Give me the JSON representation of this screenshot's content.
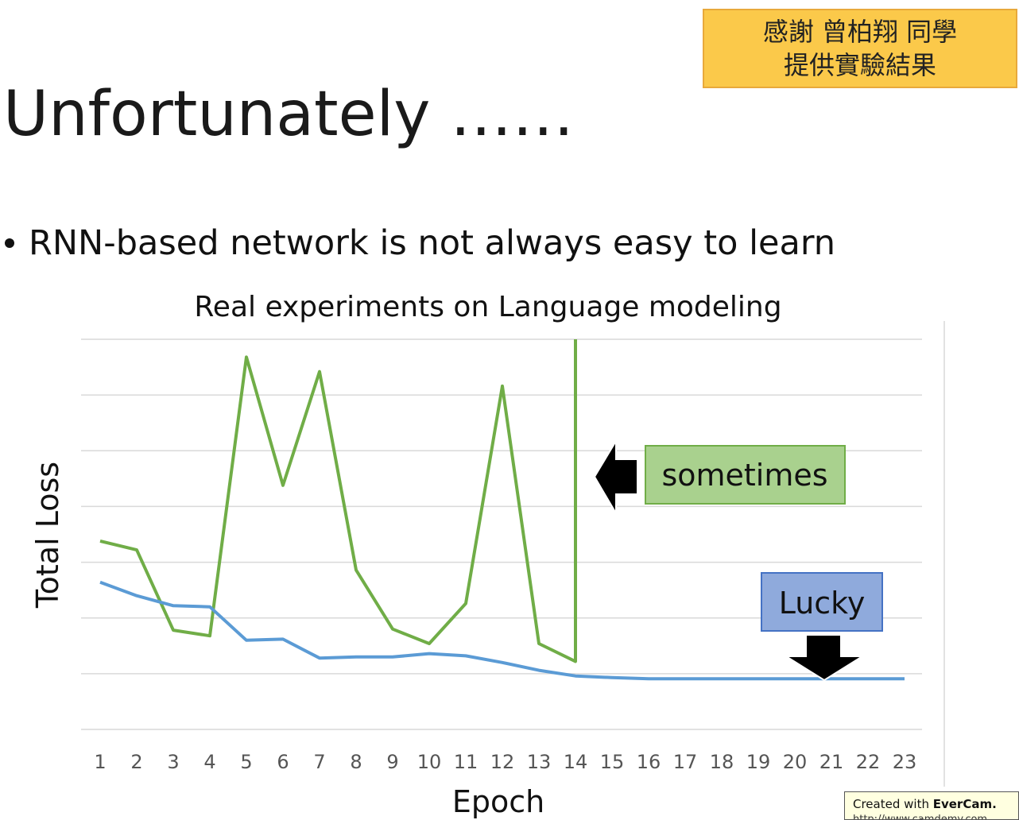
{
  "thanks_note": {
    "line1": "感謝 曾柏翔 同學",
    "line2": "提供實驗結果"
  },
  "slide": {
    "title": "Unfortunately ……",
    "bullet": "RNN-based network is not always easy to learn"
  },
  "chart_data": {
    "type": "line",
    "title": "Real experiments on Language modeling",
    "xlabel": "Epoch",
    "ylabel": "Total Loss",
    "categories": [
      "1",
      "2",
      "3",
      "4",
      "5",
      "6",
      "7",
      "8",
      "9",
      "10",
      "11",
      "12",
      "13",
      "14",
      "15",
      "16",
      "17",
      "18",
      "19",
      "20",
      "21",
      "22",
      "23"
    ],
    "ylim": [
      0,
      7
    ],
    "grid": true,
    "series": [
      {
        "color": "#70ad47",
        "values": [
          3.38,
          3.22,
          1.78,
          1.68,
          6.68,
          4.38,
          6.42,
          2.86,
          1.8,
          1.54,
          2.26,
          6.16,
          1.54,
          1.22,
          null,
          null,
          null,
          null,
          null,
          null,
          null,
          null,
          null
        ],
        "spike_to_top_at": "14"
      },
      {
        "color": "#5b9bd5",
        "values": [
          2.64,
          2.4,
          2.22,
          2.2,
          1.6,
          1.62,
          1.28,
          1.3,
          1.3,
          1.36,
          1.32,
          1.2,
          1.06,
          0.96,
          0.93,
          0.91,
          0.91,
          0.91,
          0.91,
          0.91,
          0.91,
          0.91,
          0.91
        ]
      }
    ],
    "annotations": {
      "sometimes": {
        "label": "sometimes",
        "fill": "#a9d18e",
        "border": "#70ad47"
      },
      "lucky": {
        "label": "Lucky",
        "fill": "#8faadc",
        "border": "#4472c4"
      }
    }
  },
  "watermark": {
    "prefix": "Created with ",
    "brand": "EverCam.",
    "url": "http://www.camdemy.com"
  }
}
